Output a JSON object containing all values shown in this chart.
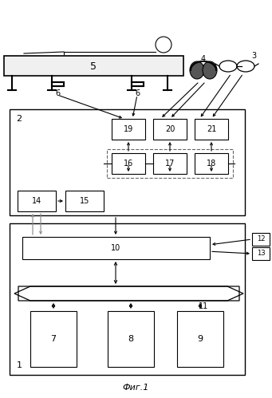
{
  "fig_width": 3.41,
  "fig_height": 4.99,
  "dpi": 100,
  "bg_color": "#ffffff",
  "lc": "#000000",
  "gc": "#888888",
  "caption": "Фиг.1"
}
